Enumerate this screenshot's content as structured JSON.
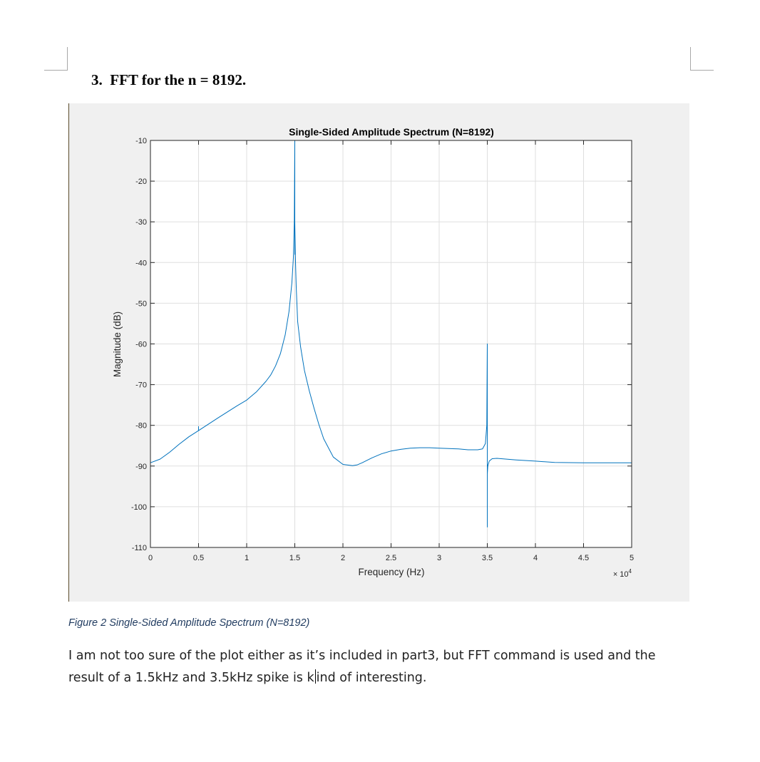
{
  "heading": {
    "number": "3.",
    "text": "FFT for the n = 8192."
  },
  "caption": "Figure 2 Single-Sided Amplitude Spectrum (N=8192)",
  "paragraph": {
    "before_caret": "I am not too sure of the plot either as it’s included in part3, but FFT command is used and the result of a 1.5kHz and 3.5kHz spike is k",
    "after_caret": "ind of interesting."
  },
  "colors": {
    "line": "#0072BD",
    "figure_bg": "#f0f0f0",
    "axes_bg": "#ffffff",
    "grid": "#dfdfdf",
    "caption": "#1f3a5f"
  },
  "chart_data": {
    "type": "line",
    "title": "Single-Sided Amplitude Spectrum (N=8192)",
    "xlabel": "Frequency (Hz)",
    "ylabel": "Magnitude (dB)",
    "x_exponent_label": "× 10",
    "x_exponent_power": "4",
    "xlim": [
      0,
      50000
    ],
    "ylim": [
      -110,
      -10
    ],
    "x_ticks": [
      0,
      5000,
      10000,
      15000,
      20000,
      25000,
      30000,
      35000,
      40000,
      45000,
      50000
    ],
    "x_tick_labels": [
      "0",
      "0.5",
      "1",
      "1.5",
      "2",
      "2.5",
      "3",
      "3.5",
      "4",
      "4.5",
      "5"
    ],
    "y_ticks": [
      -10,
      -20,
      -30,
      -40,
      -50,
      -60,
      -70,
      -80,
      -90,
      -100,
      -110
    ],
    "y_tick_labels": [
      "-10",
      "-20",
      "-30",
      "-40",
      "-50",
      "-60",
      "-70",
      "-80",
      "-90",
      "-100",
      "-110"
    ],
    "grid": true,
    "series": [
      {
        "x": [
          0,
          0,
          0,
          1000,
          2000,
          3000,
          4000,
          5000,
          5000,
          5000,
          7000,
          9000,
          10000,
          11000,
          12000,
          12500,
          13000,
          13500,
          14000,
          14400,
          14700,
          14850,
          14950,
          15000,
          15000,
          15000,
          15050,
          15150,
          15300,
          15600,
          16000,
          16500,
          17000,
          17500,
          18000,
          19000,
          20000,
          21000,
          21500,
          22000,
          23000,
          24000,
          25000,
          26000,
          27000,
          28000,
          29000,
          30000,
          31000,
          32000,
          33000,
          34000,
          34500,
          34800,
          34950,
          35000,
          35000,
          35000,
          35000,
          35000,
          35050,
          35200,
          35500,
          36000,
          38000,
          40000,
          42000,
          45000,
          48000,
          50000,
          50000
        ],
        "y": [
          -97,
          -89,
          -89.2,
          -88.3,
          -86.6,
          -84.6,
          -82.8,
          -81.3,
          -80.3,
          -81.3,
          -78.2,
          -75.2,
          -73.8,
          -71.8,
          -69.2,
          -67.6,
          -65.4,
          -62.4,
          -57.8,
          -52,
          -45,
          -38.8,
          -30,
          -10,
          -38,
          -30,
          -38,
          -46,
          -54.5,
          -60.7,
          -66.5,
          -71.5,
          -75.8,
          -79.8,
          -83.3,
          -87.8,
          -89.6,
          -89.9,
          -89.7,
          -89.2,
          -88,
          -87,
          -86.3,
          -85.9,
          -85.6,
          -85.5,
          -85.5,
          -85.6,
          -85.7,
          -85.8,
          -86,
          -86,
          -85.8,
          -84.5,
          -80,
          -60,
          -100,
          -105,
          -89.5,
          -92,
          -90,
          -88.8,
          -88.2,
          -88.1,
          -88.5,
          -88.8,
          -89.1,
          -89.2,
          -89.2,
          -89.2,
          -95
        ]
      }
    ]
  }
}
